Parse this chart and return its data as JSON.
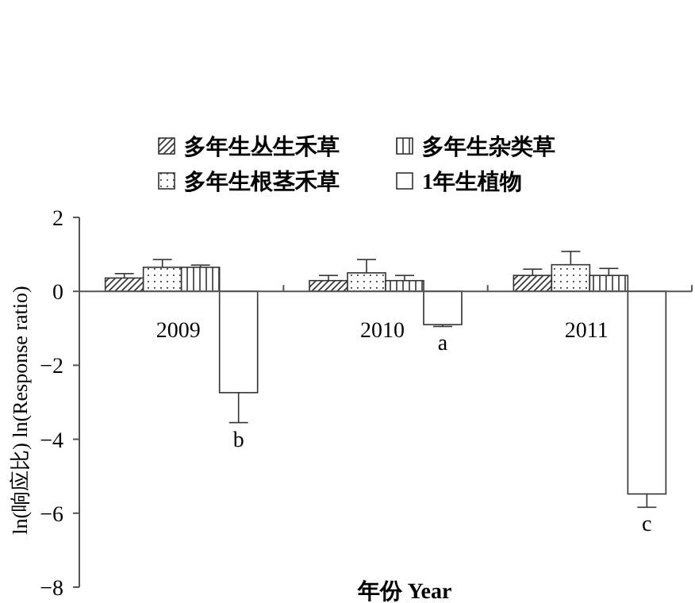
{
  "chart_data": {
    "type": "bar",
    "xlabel": "年份 Year",
    "ylabel": "ln(响应比) ln(Response ratio)",
    "categories": [
      "2009",
      "2010",
      "2011"
    ],
    "series": [
      {
        "name": "多年生丛生禾草",
        "color": "#333333",
        "values": [
          0.36,
          0.29,
          0.43
        ],
        "errors": [
          [
            0.36,
            0.48
          ],
          [
            0.29,
            0.43
          ],
          [
            0.43,
            0.6
          ]
        ]
      },
      {
        "name": "多年生根茎禾草",
        "color": "#333333",
        "values": [
          0.65,
          0.5,
          0.72
        ],
        "errors": [
          [
            0.65,
            0.86
          ],
          [
            0.5,
            0.86
          ],
          [
            0.72,
            1.08
          ]
        ]
      },
      {
        "name": "多年生杂类草",
        "color": "#333333",
        "values": [
          0.65,
          0.29,
          0.43
        ],
        "errors": [
          [
            0.65,
            0.71
          ],
          [
            0.29,
            0.43
          ],
          [
            0.43,
            0.62
          ]
        ]
      },
      {
        "name": "1年生植物",
        "color": "#333333",
        "values": [
          -2.74,
          -0.9,
          -5.48
        ],
        "errors": [
          [
            -3.55,
            -2.74
          ],
          [
            -0.95,
            -0.9
          ],
          [
            -5.84,
            -5.48
          ]
        ]
      }
    ],
    "ylim": [
      -8,
      2
    ],
    "yticks": [
      2,
      0,
      {
        "value": -2,
        "label": "−2"
      },
      {
        "value": -4,
        "label": "−4"
      },
      {
        "value": -6,
        "label": "−6"
      },
      {
        "value": -8,
        "label": "−8"
      }
    ],
    "annotations": [
      "b",
      "a",
      "c"
    ],
    "legend": "top",
    "grid": false
  }
}
